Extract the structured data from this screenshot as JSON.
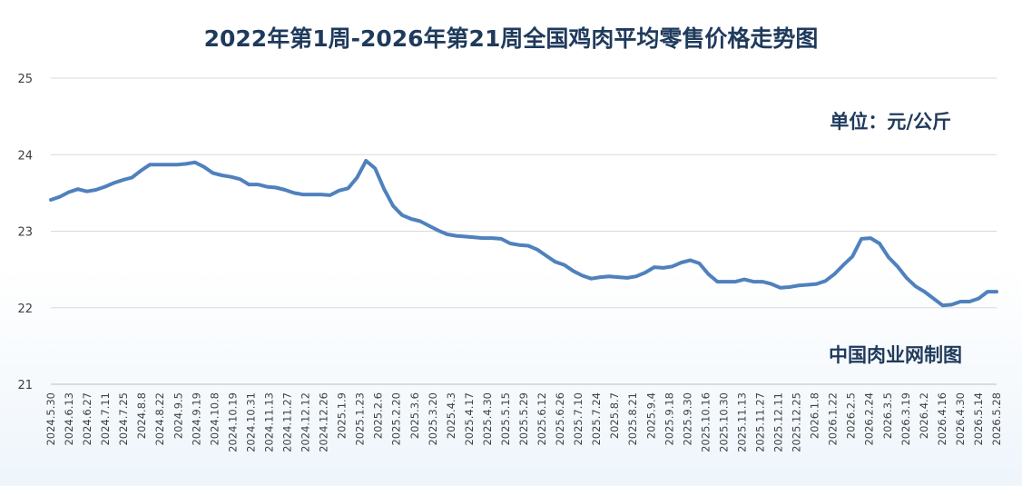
{
  "chart_data": {
    "type": "line",
    "title": "2022年第1周-2026年第21周全国鸡肉平均零售价格走势图",
    "unit_label": "单位：元/公斤",
    "source_label": "中国肉业网制图",
    "xlabel": "",
    "ylabel": "",
    "ylim": [
      21,
      25
    ],
    "yticks": [
      "21",
      "22",
      "23",
      "24",
      "25"
    ],
    "grid": "horizontal",
    "line_color": "#4f81bd",
    "x_tick_labels": [
      "2024.5.30",
      "2024.6.13",
      "2024.6.27",
      "2024.7.11",
      "2024.7.25",
      "2024.8.8",
      "2024.8.22",
      "2024.9.5",
      "2024.9.19",
      "2024.10.8",
      "2024.10.19",
      "2024.10.31",
      "2024.11.13",
      "2024.11.27",
      "2024.12.12",
      "2024.12.26",
      "2025.1.9",
      "2025.1.23",
      "2025.2.6",
      "2025.2.20",
      "2025.3.6",
      "2025.3.20",
      "2025.4.3",
      "2025.4.17",
      "2025.4.30",
      "2025.5.15",
      "2025.5.29",
      "2025.6.12",
      "2025.6.26",
      "2025.7.10",
      "2025.7.24",
      "2025.8.7",
      "2025.8.21",
      "2025.9.4",
      "2025.9.18",
      "2025.9.30",
      "2025.10.16",
      "2025.10.30",
      "2025.11.13",
      "2025.11.27",
      "2025.12.11",
      "2025.12.25",
      "2026.1.8",
      "2026.1.22",
      "2026.2.5",
      "2026.2.24",
      "2026.3.5",
      "2026.3.19",
      "2026.4.2",
      "2026.4.16",
      "2026.4.30",
      "2026.5.14",
      "2026.5.28"
    ],
    "series": [
      {
        "values": [
          23.41,
          23.45,
          23.51,
          23.55,
          23.52,
          23.54,
          23.58,
          23.63,
          23.67,
          23.7,
          23.79,
          23.87,
          23.87,
          23.87,
          23.87,
          23.88,
          23.9,
          23.84,
          23.76,
          23.73,
          23.71,
          23.68,
          23.61,
          23.61,
          23.58,
          23.57,
          23.54,
          23.5,
          23.48,
          23.48,
          23.48,
          23.47,
          23.53,
          23.56,
          23.7,
          23.92,
          23.82,
          23.55,
          23.33,
          23.21,
          23.16,
          23.13,
          23.07,
          23.01,
          22.96,
          22.94,
          22.93,
          22.92,
          22.91,
          22.91,
          22.9,
          22.84,
          22.82,
          22.81,
          22.76,
          22.68,
          22.6,
          22.56,
          22.48,
          22.42,
          22.38,
          22.4,
          22.41,
          22.4,
          22.39,
          22.41,
          22.46,
          22.53,
          22.52,
          22.54,
          22.59,
          22.62,
          22.58,
          22.44,
          22.34,
          22.34,
          22.34,
          22.37,
          22.34,
          22.34,
          22.31,
          22.26,
          22.27,
          22.29,
          22.3,
          22.31,
          22.35,
          22.44,
          22.56,
          22.67,
          22.9,
          22.91,
          22.84,
          22.66,
          22.54,
          22.39,
          22.28,
          22.21,
          22.12,
          22.03,
          22.04,
          22.08,
          22.08,
          22.12,
          22.21,
          22.21
        ]
      }
    ]
  }
}
